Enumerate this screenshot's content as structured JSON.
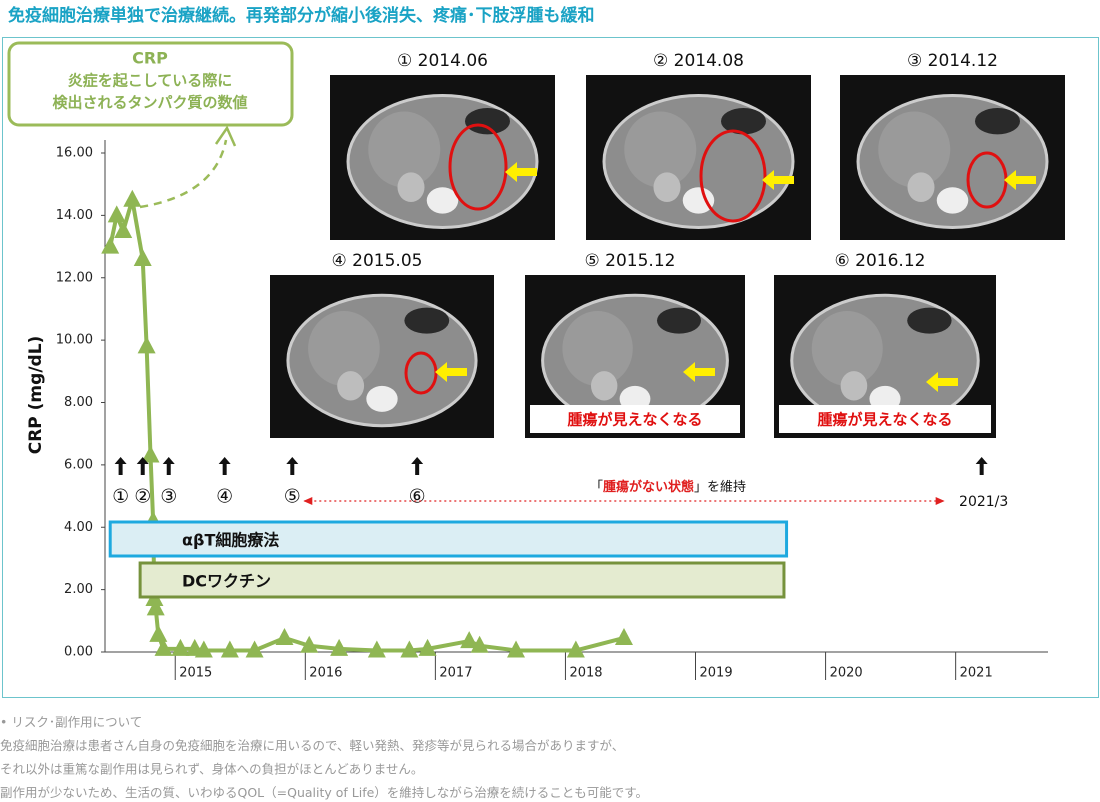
{
  "chart_data": {
    "type": "line",
    "title": "免疫細胞治療単独で治療継続。再発部分が縮小後消失、疼痛･下肢浮腫も緩和",
    "y_label": "CRP (mg/dL)",
    "callout": [
      "CRP",
      "炎症を起こしている際に",
      "検出されるタンパク質の数値"
    ],
    "color": "#8fb653",
    "x": [
      2014.5,
      2014.55,
      2014.6,
      2014.67,
      2014.75,
      2014.78,
      2014.81,
      2014.83,
      2014.84,
      2014.85,
      2014.87,
      2014.91,
      2015.04,
      2015.15,
      2015.22,
      2015.42,
      2015.61,
      2015.84,
      2016.03,
      2016.26,
      2016.55,
      2016.8,
      2016.94,
      2017.26,
      2017.34,
      2017.62,
      2018.08,
      2018.45
    ],
    "values": [
      13.0,
      14.0,
      13.5,
      14.5,
      12.6,
      9.8,
      6.3,
      4.2,
      1.7,
      1.4,
      0.55,
      0.1,
      0.1,
      0.1,
      0.05,
      0.05,
      0.05,
      0.45,
      0.2,
      0.1,
      0.05,
      0.05,
      0.1,
      0.35,
      0.2,
      0.05,
      0.05,
      0.45
    ],
    "xlim": [
      2014.46,
      2021.71
    ],
    "xticks": [
      2015,
      2016,
      2017,
      2018,
      2019,
      2020,
      2021
    ],
    "ylim": [
      0,
      16
    ],
    "yticks": [
      {
        "value": 0,
        "label": "0.00"
      },
      {
        "value": 2,
        "label": "2.00"
      },
      {
        "value": 4,
        "label": "4.00"
      },
      {
        "value": 6,
        "label": "6.00"
      },
      {
        "value": 8,
        "label": "8.00"
      },
      {
        "value": 10,
        "label": "10.00"
      },
      {
        "value": 12,
        "label": "12.00"
      },
      {
        "value": 14,
        "label": "14.00"
      },
      {
        "value": 16,
        "label": "16.00"
      }
    ],
    "events": [
      {
        "x": 2014.58,
        "label": "①"
      },
      {
        "x": 2014.75,
        "label": "②"
      },
      {
        "x": 2014.95,
        "label": "③"
      },
      {
        "x": 2015.38,
        "label": "④"
      },
      {
        "x": 2015.9,
        "label": "⑤"
      },
      {
        "x": 2016.86,
        "label": "⑥"
      },
      {
        "x": 2021.2,
        "label": "2021/3"
      }
    ],
    "maintain_text": [
      "「",
      "腫瘍がない状態",
      "」を維持"
    ],
    "therapies": [
      {
        "label": "αβT細胞療法",
        "start": 2014.5,
        "end": 2019.7,
        "fill": "#dbeef4",
        "stroke": "#1ea9df"
      },
      {
        "label": "DCワクチン",
        "start": 2014.73,
        "end": 2019.68,
        "fill": "#e4ebd0",
        "stroke": "#76923c"
      }
    ]
  },
  "ct_scans": [
    {
      "label": "① 2014.06"
    },
    {
      "label": "② 2014.08"
    },
    {
      "label": "③ 2014.12"
    },
    {
      "label": "④ 2015.05"
    },
    {
      "label": "⑤ 2015.12",
      "note": "腫瘍が見えなくなる"
    },
    {
      "label": "⑥ 2016.12",
      "note": "腫瘍が見えなくなる"
    }
  ],
  "notes": [
    "• リスク･副作用について",
    "免疫細胞治療は患者さん自身の免疫細胞を治療に用いるので、軽い発熱、発疹等が見られる場合がありますが、",
    "それ以外は重篤な副作用は見られず、身体への負担がほとんどありません。",
    "副作用が少ないため、生活の質、いわゆるQOL（=Quality of Life）を維持しながら治療を続けることも可能です。"
  ]
}
